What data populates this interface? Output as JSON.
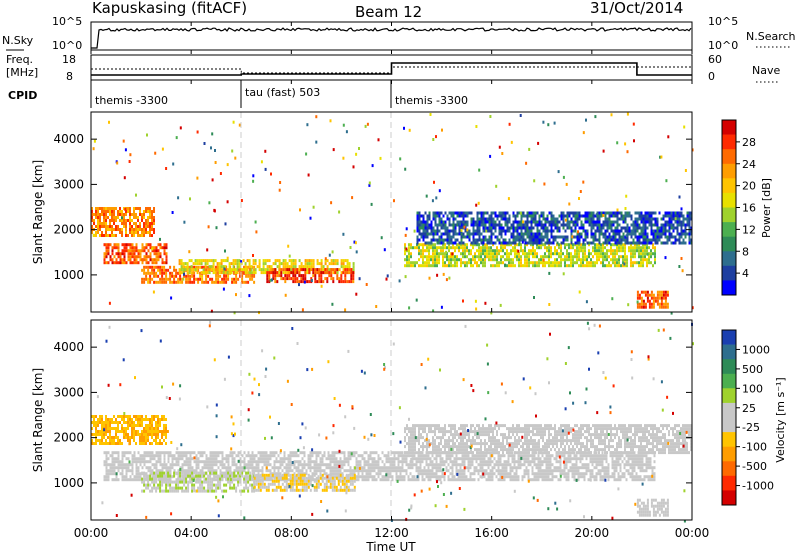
{
  "header": {
    "title": "Kapuskasing (fitACF)",
    "beam": "Beam 12",
    "date": "31/Oct/2014"
  },
  "top_panels": {
    "nsky_label": "N.Sky",
    "nsky_ticks": [
      "10^5",
      "10^0"
    ],
    "nsearch_ticks": [
      "10^5",
      "10^0"
    ],
    "nsearch_label": "N.Search",
    "freq_label_1": "Freq.",
    "freq_label_2": "[MHz]",
    "freq_ticks": [
      "18",
      "8"
    ],
    "nave_ticks": [
      "60",
      "0"
    ],
    "nave_label": "Nave",
    "cpid_label": "CPID",
    "cpid_segments": [
      {
        "start_h": 0,
        "end_h": 6,
        "name": "themis -3300"
      },
      {
        "start_h": 6,
        "end_h": 12,
        "name": "tau (fast) 503"
      },
      {
        "start_h": 12,
        "end_h": 24,
        "name": "themis -3300"
      }
    ]
  },
  "axes": {
    "x_ticks": [
      "00:00",
      "04:00",
      "08:00",
      "12:00",
      "16:00",
      "20:00",
      "00:00"
    ],
    "x_label": "Time UT",
    "y_label": "Slant Range [km]",
    "y_ticks": [
      "1000",
      "2000",
      "3000",
      "4000"
    ]
  },
  "colorbars": {
    "power_label": "Power [dB]",
    "power_ticks": [
      "28",
      "24",
      "20",
      "16",
      "12",
      "8",
      "4"
    ],
    "power_colors": [
      "#d40000",
      "#ff2a00",
      "#ff6a00",
      "#ff9d00",
      "#ffc400",
      "#e8e000",
      "#9fd22d",
      "#4caf50",
      "#2e8b57",
      "#2e6e8e",
      "#1e3fa0",
      "#0000ff"
    ],
    "velocity_label": "Velocity [m s⁻¹]",
    "velocity_ticks": [
      "1000",
      "500",
      "100",
      "25",
      "-25",
      "-100",
      "-500",
      "-1000"
    ],
    "velocity_colors": [
      "#1a3fb0",
      "#2e6e8e",
      "#2e8b57",
      "#4caf50",
      "#9fd22d",
      "#c8c8c8",
      "#c8c8c8",
      "#ffc400",
      "#ff9d00",
      "#ff6a00",
      "#ff2a00",
      "#d40000"
    ]
  },
  "chart_data": {
    "type": "heatmap",
    "x_range_hours": [
      0,
      24
    ],
    "y_range_km": [
      180,
      4600
    ],
    "panels": [
      {
        "quantity": "Power",
        "units": "dB",
        "scale": [
          0,
          32
        ],
        "regions": [
          {
            "t": [
              0.0,
              2.5
            ],
            "r": [
              1900,
              2500
            ],
            "value": 24
          },
          {
            "t": [
              0.5,
              3.0
            ],
            "r": [
              1300,
              1700
            ],
            "value": 26
          },
          {
            "t": [
              2.0,
              6.5
            ],
            "r": [
              850,
              1200
            ],
            "value": 25
          },
          {
            "t": [
              3.5,
              10.5
            ],
            "r": [
              1050,
              1350
            ],
            "value": 18
          },
          {
            "t": [
              7.0,
              10.5
            ],
            "r": [
              850,
              1150
            ],
            "value": 27
          },
          {
            "t": [
              12.5,
              22.5
            ],
            "r": [
              1200,
              1700
            ],
            "value": 16
          },
          {
            "t": [
              13.0,
              24.0
            ],
            "r": [
              1700,
              2400
            ],
            "value": 5
          },
          {
            "t": [
              21.8,
              23.0
            ],
            "r": [
              300,
              650
            ],
            "value": 26
          }
        ]
      },
      {
        "quantity": "Velocity",
        "units": "m s-1",
        "scale": [
          -1000,
          1000
        ],
        "regions": [
          {
            "t": [
              0.0,
              3.0
            ],
            "r": [
              1900,
              2500
            ],
            "value": -300
          },
          {
            "t": [
              0.5,
              22.5
            ],
            "r": [
              1100,
              1700
            ],
            "value": 0
          },
          {
            "t": [
              2.0,
              6.5
            ],
            "r": [
              850,
              1250
            ],
            "value": 120
          },
          {
            "t": [
              6.5,
              10.5
            ],
            "r": [
              850,
              1200
            ],
            "value": -150
          },
          {
            "t": [
              12.5,
              24.0
            ],
            "r": [
              1700,
              2300
            ],
            "value": 0
          },
          {
            "t": [
              21.8,
              23.0
            ],
            "r": [
              300,
              650
            ],
            "value": 0
          }
        ]
      }
    ]
  }
}
